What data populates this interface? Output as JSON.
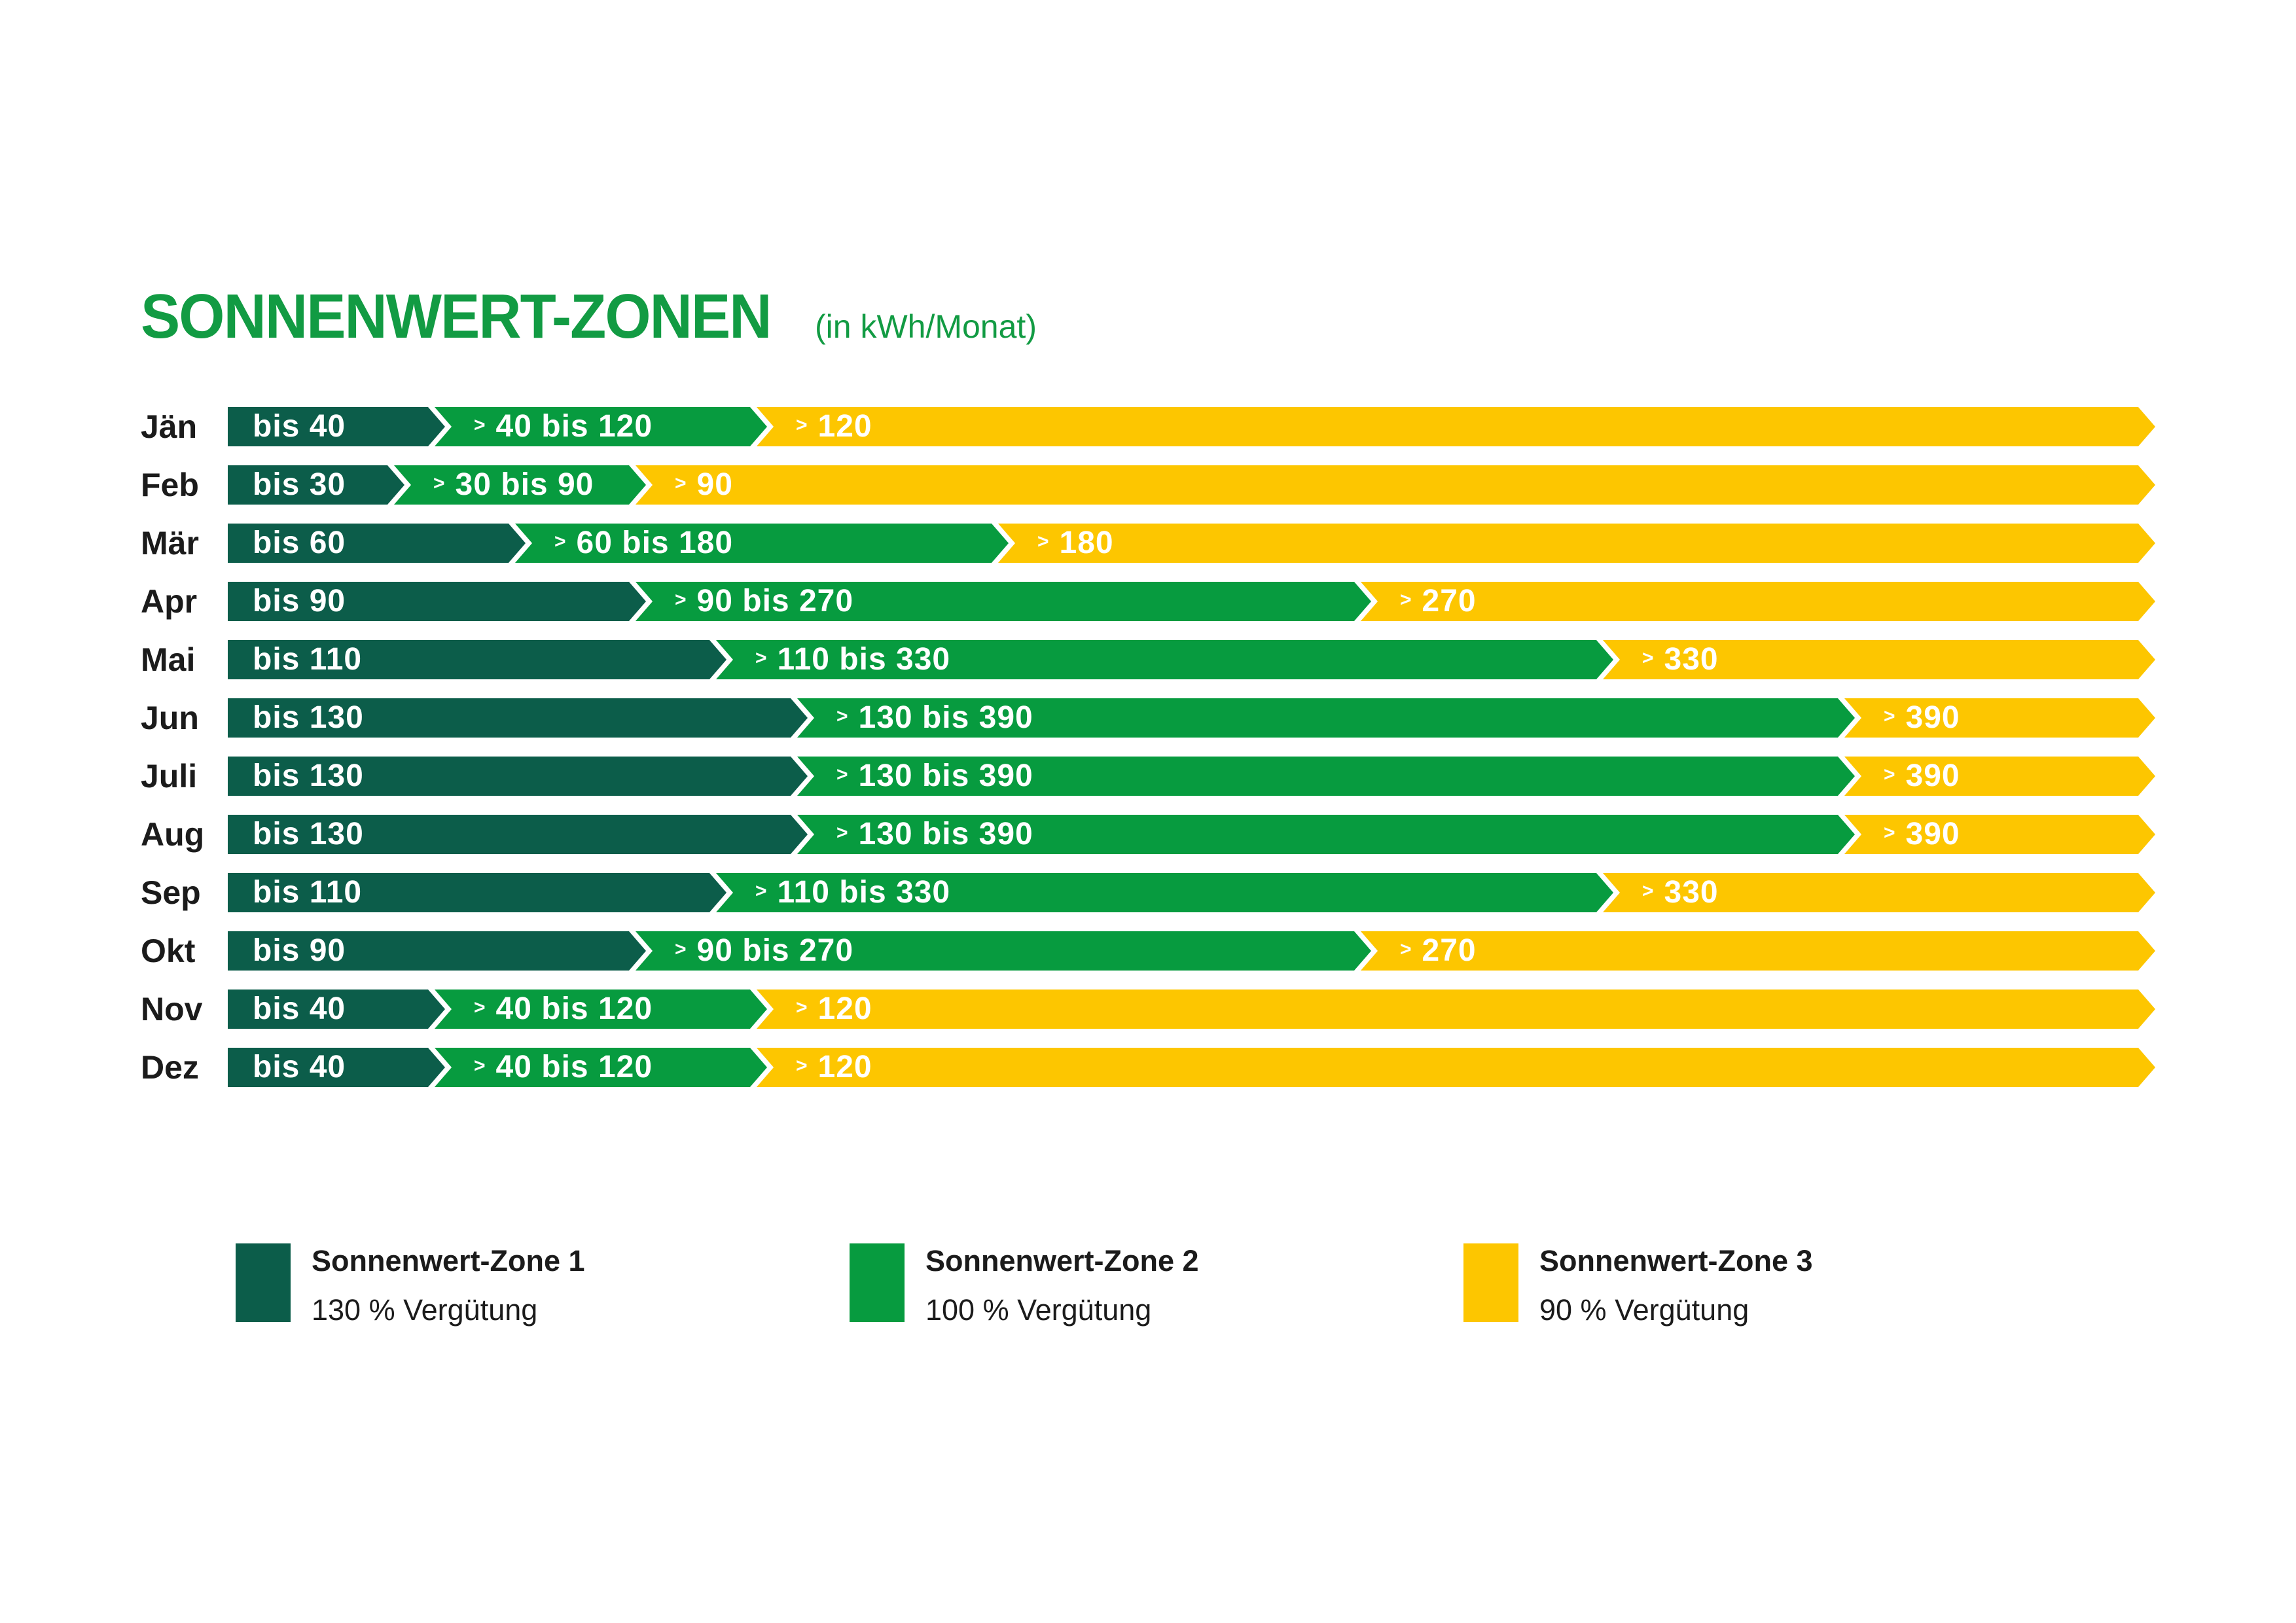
{
  "title": {
    "text": "SONNENWERT-ZONEN",
    "subtitle": "(in kWh/Monat)"
  },
  "colors": {
    "zone1": "#0C5D4A",
    "zone2": "#079B3F",
    "zone3": "#FDC600",
    "title_green": "#129B43",
    "bar_text": "#FFFFFF",
    "label_text": "#1B1B1B"
  },
  "chart_data": {
    "type": "bar",
    "orientation": "horizontal-stacked",
    "title": "SONNENWERT-ZONEN",
    "subtitle": "(in kWh/Monat)",
    "unit": "kWh/Monat",
    "gt_symbol": ">",
    "zones": [
      "Sonnenwert-Zone 1",
      "Sonnenwert-Zone 2",
      "Sonnenwert-Zone 3"
    ],
    "legend_position": "bottom",
    "grid": false,
    "months": [
      {
        "label": "Jän",
        "zone1_max": 40,
        "zone2_max": 120,
        "zone1_label": "bis 40",
        "zone2_label": "40 bis 120",
        "zone3_label": "120"
      },
      {
        "label": "Feb",
        "zone1_max": 30,
        "zone2_max": 90,
        "zone1_label": "bis 30",
        "zone2_label": "30 bis 90",
        "zone3_label": "90"
      },
      {
        "label": "Mär",
        "zone1_max": 60,
        "zone2_max": 180,
        "zone1_label": "bis 60",
        "zone2_label": "60 bis 180",
        "zone3_label": "180"
      },
      {
        "label": "Apr",
        "zone1_max": 90,
        "zone2_max": 270,
        "zone1_label": "bis 90",
        "zone2_label": "90 bis 270",
        "zone3_label": "270"
      },
      {
        "label": "Mai",
        "zone1_max": 110,
        "zone2_max": 330,
        "zone1_label": "bis 110",
        "zone2_label": "110 bis 330",
        "zone3_label": "330"
      },
      {
        "label": "Jun",
        "zone1_max": 130,
        "zone2_max": 390,
        "zone1_label": "bis 130",
        "zone2_label": "130 bis 390",
        "zone3_label": "390"
      },
      {
        "label": "Juli",
        "zone1_max": 130,
        "zone2_max": 390,
        "zone1_label": "bis 130",
        "zone2_label": "130 bis 390",
        "zone3_label": "390"
      },
      {
        "label": "Aug",
        "zone1_max": 130,
        "zone2_max": 390,
        "zone1_label": "bis 130",
        "zone2_label": "130 bis 390",
        "zone3_label": "390"
      },
      {
        "label": "Sep",
        "zone1_max": 110,
        "zone2_max": 330,
        "zone1_label": "bis 110",
        "zone2_label": "110 bis 330",
        "zone3_label": "330"
      },
      {
        "label": "Okt",
        "zone1_max": 90,
        "zone2_max": 270,
        "zone1_label": "bis 90",
        "zone2_label": "90 bis 270",
        "zone3_label": "270"
      },
      {
        "label": "Nov",
        "zone1_max": 40,
        "zone2_max": 120,
        "zone1_label": "bis 40",
        "zone2_label": "40 bis 120",
        "zone3_label": "120"
      },
      {
        "label": "Dez",
        "zone1_max": 40,
        "zone2_max": 120,
        "zone1_label": "bis 40",
        "zone2_label": "40 bis 120",
        "zone3_label": "120"
      }
    ]
  },
  "legend": {
    "items": [
      {
        "title": "Sonnenwert-Zone 1",
        "subtitle": "130 % Vergütung",
        "color": "#0C5D4A"
      },
      {
        "title": "Sonnenwert-Zone 2",
        "subtitle": "100 % Vergütung",
        "color": "#079B3F"
      },
      {
        "title": "Sonnenwert-Zone 3",
        "subtitle": "90 % Vergütung",
        "color": "#FDC600"
      }
    ]
  }
}
